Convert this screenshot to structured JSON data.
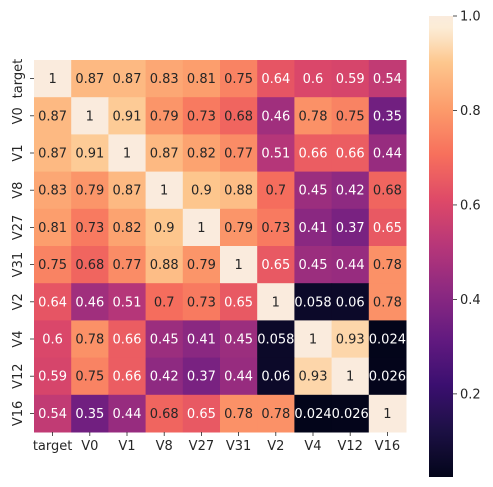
{
  "chart_data": {
    "type": "heatmap",
    "title": "",
    "xlabel": "",
    "ylabel": "",
    "x_labels": [
      "target",
      "V0",
      "V1",
      "V8",
      "V27",
      "V31",
      "V2",
      "V4",
      "V12",
      "V16"
    ],
    "y_labels": [
      "target",
      "V0",
      "V1",
      "V8",
      "V27",
      "V31",
      "V2",
      "V4",
      "V12",
      "V16"
    ],
    "values": [
      [
        1,
        0.87,
        0.87,
        0.83,
        0.81,
        0.75,
        0.64,
        0.6,
        0.59,
        0.54
      ],
      [
        0.87,
        1,
        0.91,
        0.79,
        0.73,
        0.68,
        0.46,
        0.78,
        0.75,
        0.35
      ],
      [
        0.87,
        0.91,
        1,
        0.87,
        0.82,
        0.77,
        0.51,
        0.66,
        0.66,
        0.44
      ],
      [
        0.83,
        0.79,
        0.87,
        1,
        0.9,
        0.88,
        0.7,
        0.45,
        0.42,
        0.68
      ],
      [
        0.81,
        0.73,
        0.82,
        0.9,
        1,
        0.79,
        0.73,
        0.41,
        0.37,
        0.65
      ],
      [
        0.75,
        0.68,
        0.77,
        0.88,
        0.79,
        1,
        0.65,
        0.45,
        0.44,
        0.78
      ],
      [
        0.64,
        0.46,
        0.51,
        0.7,
        0.73,
        0.65,
        1,
        0.058,
        0.06,
        0.78
      ],
      [
        0.6,
        0.78,
        0.66,
        0.45,
        0.41,
        0.45,
        0.058,
        1,
        0.93,
        0.024
      ],
      [
        0.59,
        0.75,
        0.66,
        0.42,
        0.37,
        0.44,
        0.06,
        0.93,
        1,
        0.026
      ],
      [
        0.54,
        0.35,
        0.44,
        0.68,
        0.65,
        0.78,
        0.78,
        0.024,
        0.026,
        1
      ]
    ],
    "annotations": [
      [
        "1",
        "0.87",
        "0.87",
        "0.83",
        "0.81",
        "0.75",
        "0.64",
        "0.6",
        "0.59",
        "0.54"
      ],
      [
        "0.87",
        "1",
        "0.91",
        "0.79",
        "0.73",
        "0.68",
        "0.46",
        "0.78",
        "0.75",
        "0.35"
      ],
      [
        "0.87",
        "0.91",
        "1",
        "0.87",
        "0.82",
        "0.77",
        "0.51",
        "0.66",
        "0.66",
        "0.44"
      ],
      [
        "0.83",
        "0.79",
        "0.87",
        "1",
        "0.9",
        "0.88",
        "0.7",
        "0.45",
        "0.42",
        "0.68"
      ],
      [
        "0.81",
        "0.73",
        "0.82",
        "0.9",
        "1",
        "0.79",
        "0.73",
        "0.41",
        "0.37",
        "0.65"
      ],
      [
        "0.75",
        "0.68",
        "0.77",
        "0.88",
        "0.79",
        "1",
        "0.65",
        "0.45",
        "0.44",
        "0.78"
      ],
      [
        "0.64",
        "0.46",
        "0.51",
        "0.7",
        "0.73",
        "0.65",
        "1",
        "0.058",
        "0.06",
        "0.78"
      ],
      [
        "0.6",
        "0.78",
        "0.66",
        "0.45",
        "0.41",
        "0.45",
        "0.058",
        "1",
        "0.93",
        "0.024"
      ],
      [
        "0.59",
        "0.75",
        "0.66",
        "0.42",
        "0.37",
        "0.44",
        "0.06",
        "0.93",
        "1",
        "0.026"
      ],
      [
        "0.54",
        "0.35",
        "0.44",
        "0.68",
        "0.65",
        "0.78",
        "0.78",
        "0.024",
        "0.026",
        "1"
      ]
    ],
    "colormap": "rocket",
    "colorbar": {
      "range": [
        0.024,
        1.0
      ],
      "ticks": [
        0.2,
        0.4,
        0.6,
        0.8,
        1.0
      ],
      "tick_labels": [
        "0.2",
        "0.4",
        "0.6",
        "0.8",
        "1.0"
      ],
      "placement": "right"
    },
    "annotation_colors": {
      "on_light": "#262626",
      "on_dark": "#ffffff"
    },
    "grid": false,
    "legend": "none"
  }
}
